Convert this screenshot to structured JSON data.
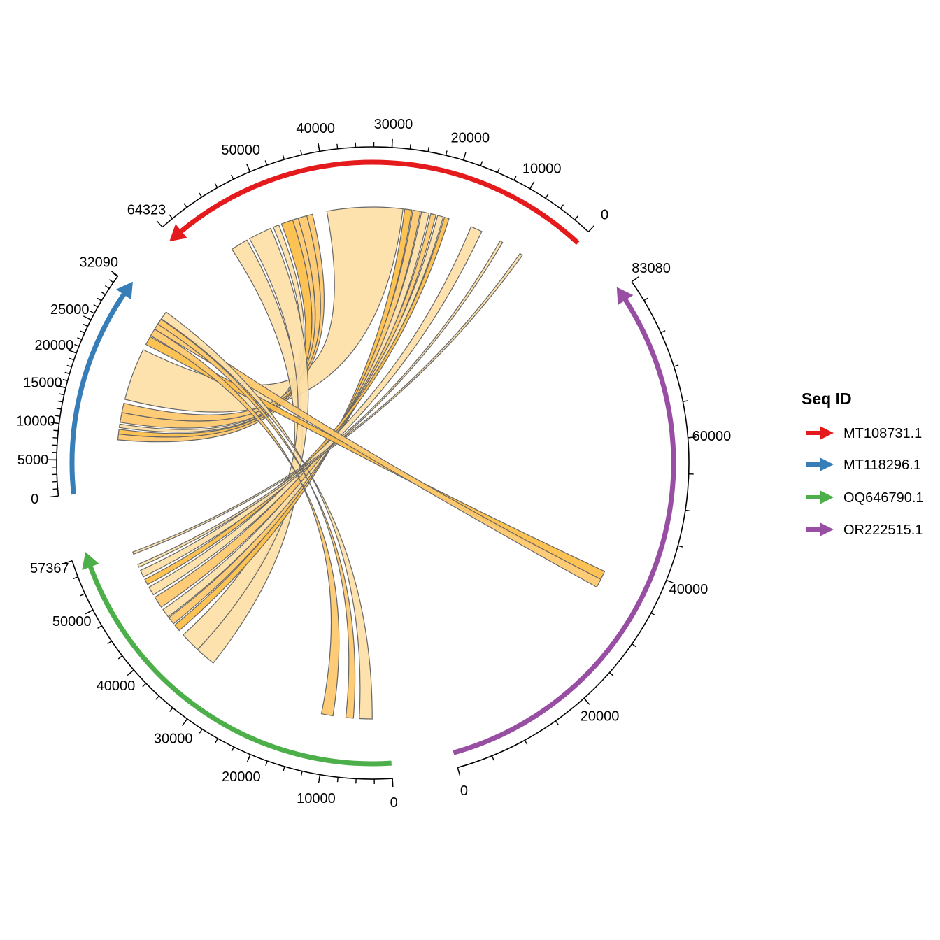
{
  "chart_data": {
    "type": "chord",
    "title": "",
    "start_angle_deg": 43,
    "gap_deg": 12,
    "ribbon_colors": [
      "#FEE0A6",
      "#FEC86A",
      "#FDBD45"
    ],
    "sequences": [
      {
        "id": "MT108731.1",
        "length": 64323,
        "color": "#E41A1C",
        "direction": "reverse",
        "labeled_ticks": [
          0,
          10000,
          20000,
          30000,
          40000,
          50000,
          64323
        ],
        "minor_step": 2500
      },
      {
        "id": "MT118296.1",
        "length": 32090,
        "color": "#377EB8",
        "direction": "forward",
        "labeled_ticks": [
          0,
          5000,
          10000,
          15000,
          20000,
          25000,
          32090
        ],
        "minor_step": 1000
      },
      {
        "id": "OQ646790.1",
        "length": 57367,
        "color": "#4DAF4A",
        "direction": "forward",
        "labeled_ticks": [
          0,
          10000,
          20000,
          30000,
          40000,
          50000,
          57367
        ],
        "minor_step": 2500
      },
      {
        "id": "OR222515.1",
        "length": 83080,
        "color": "#984EA3",
        "direction": "reverse",
        "labeled_ticks": [
          0,
          20000,
          40000,
          60000,
          83080
        ],
        "minor_step": 5000
      }
    ],
    "links": [
      {
        "a": 0,
        "a_start": 27500,
        "a_end": 40500,
        "b": 1,
        "b_start": 15500,
        "b_end": 24500,
        "shade": 0
      },
      {
        "a": 0,
        "a_start": 45500,
        "a_end": 46500,
        "b": 1,
        "b_start": 8500,
        "b_end": 9500,
        "shade": 1
      },
      {
        "a": 0,
        "a_start": 46500,
        "a_end": 48500,
        "b": 1,
        "b_start": 9500,
        "b_end": 10300,
        "shade": 2
      },
      {
        "a": 0,
        "a_start": 49000,
        "a_end": 50000,
        "b": 1,
        "b_start": 10600,
        "b_end": 11200,
        "shade": 0
      },
      {
        "a": 0,
        "a_start": 44000,
        "a_end": 45500,
        "b": 1,
        "b_start": 11500,
        "b_end": 13200,
        "shade": 1
      },
      {
        "a": 0,
        "a_start": 43000,
        "a_end": 44000,
        "b": 1,
        "b_start": 13200,
        "b_end": 14800,
        "shade": 1
      },
      {
        "a": 0,
        "a_start": 55000,
        "a_end": 58000,
        "b": 2,
        "b_start": 32000,
        "b_end": 35500,
        "shade": 0
      },
      {
        "a": 0,
        "a_start": 50500,
        "a_end": 54500,
        "b": 2,
        "b_start": 35500,
        "b_end": 39000,
        "shade": 0
      },
      {
        "a": 0,
        "a_start": 26000,
        "a_end": 27200,
        "b": 2,
        "b_start": 40000,
        "b_end": 41200,
        "shade": 2
      },
      {
        "a": 0,
        "a_start": 24500,
        "a_end": 25800,
        "b": 2,
        "b_start": 41500,
        "b_end": 42800,
        "shade": 1
      },
      {
        "a": 0,
        "a_start": 23000,
        "a_end": 24300,
        "b": 2,
        "b_start": 43000,
        "b_end": 44500,
        "shade": 0
      },
      {
        "a": 0,
        "a_start": 21800,
        "a_end": 22700,
        "b": 2,
        "b_start": 45000,
        "b_end": 47000,
        "shade": 1
      },
      {
        "a": 0,
        "a_start": 20500,
        "a_end": 21500,
        "b": 2,
        "b_start": 47500,
        "b_end": 49000,
        "shade": 0
      },
      {
        "a": 0,
        "a_start": 19500,
        "a_end": 20300,
        "b": 2,
        "b_start": 49500,
        "b_end": 50500,
        "shade": 2
      },
      {
        "a": 0,
        "a_start": 13500,
        "a_end": 15500,
        "b": 2,
        "b_start": 51000,
        "b_end": 52200,
        "shade": 0
      },
      {
        "a": 0,
        "a_start": 9500,
        "a_end": 10000,
        "b": 2,
        "b_start": 52800,
        "b_end": 53300,
        "shade": 0
      },
      {
        "a": 0,
        "a_start": 5500,
        "a_end": 6000,
        "b": 2,
        "b_start": 55200,
        "b_end": 55600,
        "shade": 0
      },
      {
        "a": 1,
        "a_start": 25500,
        "a_end": 27000,
        "b": 3,
        "b_start": 36000,
        "b_end": 37500,
        "shade": 2
      },
      {
        "a": 1,
        "a_start": 28500,
        "a_end": 30500,
        "b": 3,
        "b_start": 34500,
        "b_end": 36000,
        "shade": 1
      },
      {
        "a": 2,
        "a_start": 2800,
        "a_end": 5000,
        "b": 1,
        "b_start": 30600,
        "b_end": 32000,
        "shade": 0
      },
      {
        "a": 2,
        "a_start": 6000,
        "a_end": 7300,
        "b": 1,
        "b_start": 29500,
        "b_end": 30500,
        "shade": 1
      },
      {
        "a": 2,
        "a_start": 9500,
        "a_end": 11500,
        "b": 1,
        "b_start": 27200,
        "b_end": 28500,
        "shade": 1
      }
    ]
  },
  "legend": {
    "title": "Seq ID",
    "items": [
      {
        "label": "MT108731.1",
        "color": "#E41A1C"
      },
      {
        "label": "MT118296.1",
        "color": "#377EB8"
      },
      {
        "label": "OQ646790.1",
        "color": "#4DAF4A"
      },
      {
        "label": "OR222515.1",
        "color": "#984EA3"
      }
    ]
  }
}
